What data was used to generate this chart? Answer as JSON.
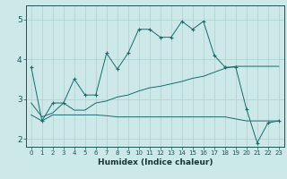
{
  "xlabel": "Humidex (Indice chaleur)",
  "bg_color": "#cce8e8",
  "grid_color": "#aad0d0",
  "line_color": "#1a6b6b",
  "xlim": [
    -0.5,
    23.5
  ],
  "ylim": [
    1.8,
    5.35
  ],
  "yticks": [
    2,
    3,
    4,
    5
  ],
  "xticks": [
    0,
    1,
    2,
    3,
    4,
    5,
    6,
    7,
    8,
    9,
    10,
    11,
    12,
    13,
    14,
    15,
    16,
    17,
    18,
    19,
    20,
    21,
    22,
    23
  ],
  "line1_x": [
    0,
    1,
    2,
    3,
    4,
    5,
    6,
    7,
    8,
    9,
    10,
    11,
    12,
    13,
    14,
    15,
    16,
    17,
    18,
    19,
    20,
    21,
    22,
    23
  ],
  "line1_y": [
    3.8,
    2.45,
    2.9,
    2.9,
    3.5,
    3.1,
    3.1,
    4.15,
    3.75,
    4.15,
    4.75,
    4.75,
    4.55,
    4.55,
    4.95,
    4.75,
    4.95,
    4.1,
    3.8,
    3.8,
    2.75,
    1.9,
    2.4,
    2.45
  ],
  "line2_x": [
    0,
    1,
    2,
    3,
    4,
    5,
    6,
    7,
    8,
    9,
    10,
    11,
    12,
    13,
    14,
    15,
    16,
    17,
    18,
    19,
    20,
    21,
    22,
    23
  ],
  "line2_y": [
    2.9,
    2.55,
    2.65,
    2.9,
    2.72,
    2.72,
    2.9,
    2.95,
    3.05,
    3.1,
    3.2,
    3.28,
    3.32,
    3.38,
    3.44,
    3.52,
    3.57,
    3.67,
    3.77,
    3.82,
    3.82,
    3.82,
    3.82,
    3.82
  ],
  "line3_x": [
    0,
    1,
    2,
    3,
    4,
    5,
    6,
    7,
    8,
    9,
    10,
    11,
    12,
    13,
    14,
    15,
    16,
    17,
    18,
    19,
    20,
    21,
    22,
    23
  ],
  "line3_y": [
    2.6,
    2.45,
    2.6,
    2.6,
    2.6,
    2.6,
    2.6,
    2.58,
    2.55,
    2.55,
    2.55,
    2.55,
    2.55,
    2.55,
    2.55,
    2.55,
    2.55,
    2.55,
    2.55,
    2.5,
    2.45,
    2.45,
    2.45,
    2.45
  ]
}
